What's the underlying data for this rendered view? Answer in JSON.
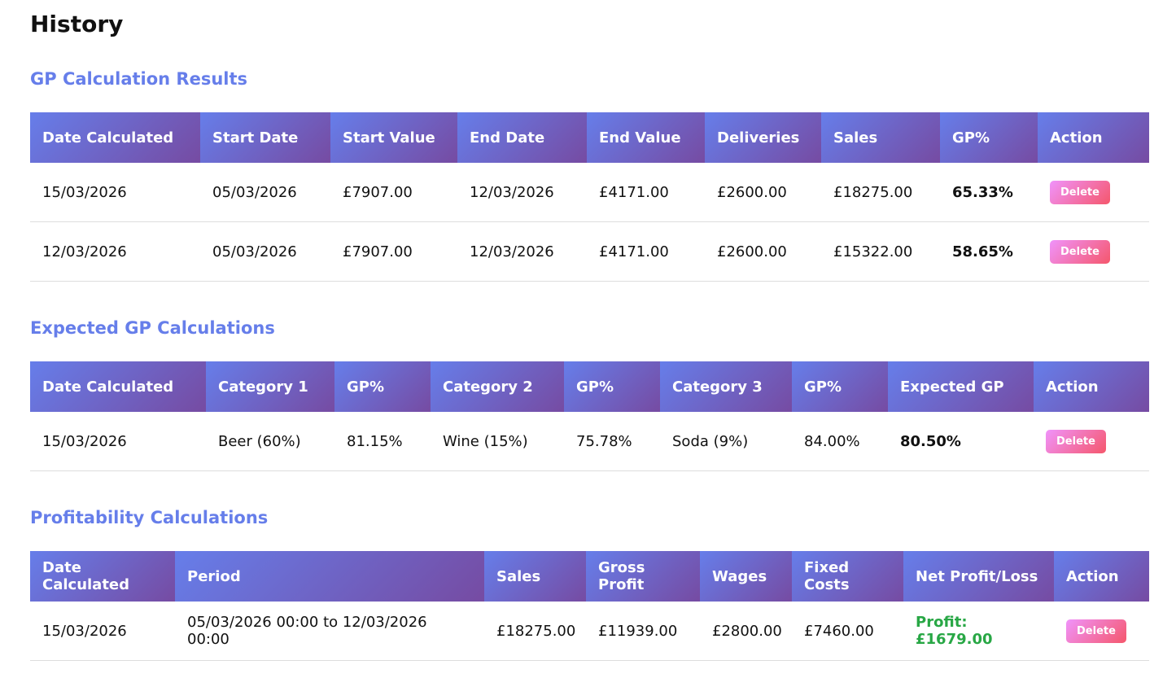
{
  "page_title": "History",
  "delete_label": "Delete",
  "sections": [
    {
      "title": "GP Calculation Results",
      "widths": [
        209,
        160,
        156,
        159,
        145,
        143,
        146,
        120,
        137
      ],
      "headers": [
        "Date Calculated",
        "Start Date",
        "Start Value",
        "End Date",
        "End Value",
        "Deliveries",
        "Sales",
        "GP%",
        "Action"
      ],
      "bold_col": 7,
      "rows": [
        [
          "15/03/2026",
          "05/03/2026",
          "£7907.00",
          "12/03/2026",
          "£4171.00",
          "£2600.00",
          "£18275.00",
          "65.33%"
        ],
        [
          "12/03/2026",
          "05/03/2026",
          "£7907.00",
          "12/03/2026",
          "£4171.00",
          "£2600.00",
          "£15322.00",
          "58.65%"
        ]
      ]
    },
    {
      "title": "Expected GP Calculations",
      "widths": [
        216,
        158,
        118,
        164,
        118,
        162,
        118,
        179,
        142
      ],
      "headers": [
        "Date Calculated",
        "Category 1",
        "GP%",
        "Category 2",
        "GP%",
        "Category 3",
        "GP%",
        "Expected GP",
        "Action"
      ],
      "bold_col": 7,
      "rows": [
        [
          "15/03/2026",
          "Beer (60%)",
          "81.15%",
          "Wine (15%)",
          "75.78%",
          "Soda (9%)",
          "84.00%",
          "80.50%"
        ]
      ]
    },
    {
      "title": "Profitability Calculations",
      "widths": [
        178,
        380,
        125,
        140,
        113,
        137,
        185,
        117
      ],
      "headers": [
        "Date Calculated",
        "Period",
        "Sales",
        "Gross Profit",
        "Wages",
        "Fixed Costs",
        "Net Profit/Loss",
        "Action"
      ],
      "profit_col": 6,
      "rows": [
        [
          "15/03/2026",
          "05/03/2026 00:00 to 12/03/2026 00:00",
          "£18275.00",
          "£11939.00",
          "£2800.00",
          "£7460.00",
          "Profit: £1679.00"
        ]
      ]
    }
  ]
}
